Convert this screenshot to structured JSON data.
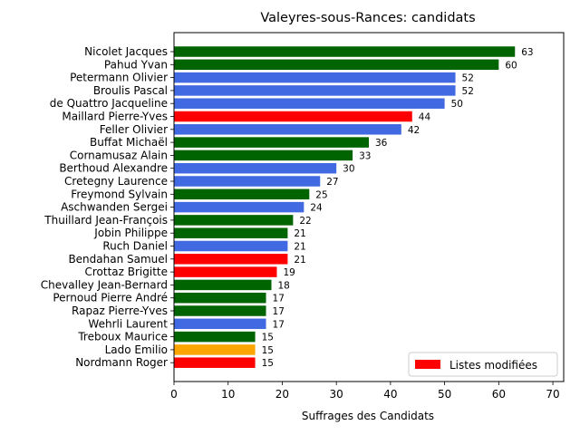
{
  "chart_data": {
    "type": "bar",
    "orientation": "horizontal",
    "title": "Valeyres-sous-Rances: candidats",
    "xlabel": "Suffrages des Candidats",
    "ylabel": "",
    "xlim": [
      0,
      72
    ],
    "xticks": [
      0,
      10,
      20,
      30,
      40,
      50,
      60,
      70
    ],
    "grid": false,
    "legend": {
      "position": "lower-right",
      "entries": [
        {
          "label": "Listes modifiées",
          "color": "#ff0000"
        }
      ]
    },
    "colors": {
      "green": "#006400",
      "blue": "#4169e1",
      "red": "#ff0000",
      "orange": "#ffa500"
    },
    "bars": [
      {
        "name": "Nicolet Jacques",
        "value": 63,
        "color": "green"
      },
      {
        "name": "Pahud Yvan",
        "value": 60,
        "color": "green"
      },
      {
        "name": "Petermann Olivier",
        "value": 52,
        "color": "blue"
      },
      {
        "name": "Broulis Pascal",
        "value": 52,
        "color": "blue"
      },
      {
        "name": "de Quattro Jacqueline",
        "value": 50,
        "color": "blue"
      },
      {
        "name": "Maillard Pierre-Yves",
        "value": 44,
        "color": "red"
      },
      {
        "name": "Feller Olivier",
        "value": 42,
        "color": "blue"
      },
      {
        "name": "Buffat Michaël",
        "value": 36,
        "color": "green"
      },
      {
        "name": "Cornamusaz Alain",
        "value": 33,
        "color": "green"
      },
      {
        "name": "Berthoud Alexandre",
        "value": 30,
        "color": "blue"
      },
      {
        "name": "Cretegny Laurence",
        "value": 27,
        "color": "blue"
      },
      {
        "name": "Freymond Sylvain",
        "value": 25,
        "color": "green"
      },
      {
        "name": "Aschwanden Sergei",
        "value": 24,
        "color": "blue"
      },
      {
        "name": "Thuillard Jean-François",
        "value": 22,
        "color": "green"
      },
      {
        "name": "Jobin Philippe",
        "value": 21,
        "color": "green"
      },
      {
        "name": "Ruch Daniel",
        "value": 21,
        "color": "blue"
      },
      {
        "name": "Bendahan Samuel",
        "value": 21,
        "color": "red"
      },
      {
        "name": "Crottaz Brigitte",
        "value": 19,
        "color": "red"
      },
      {
        "name": "Chevalley Jean-Bernard",
        "value": 18,
        "color": "green"
      },
      {
        "name": "Pernoud Pierre André",
        "value": 17,
        "color": "green"
      },
      {
        "name": "Rapaz Pierre-Yves",
        "value": 17,
        "color": "green"
      },
      {
        "name": "Wehrli Laurent",
        "value": 17,
        "color": "blue"
      },
      {
        "name": "Treboux Maurice",
        "value": 15,
        "color": "green"
      },
      {
        "name": "Lado Emilio",
        "value": 15,
        "color": "orange"
      },
      {
        "name": "Nordmann Roger",
        "value": 15,
        "color": "red"
      }
    ]
  }
}
